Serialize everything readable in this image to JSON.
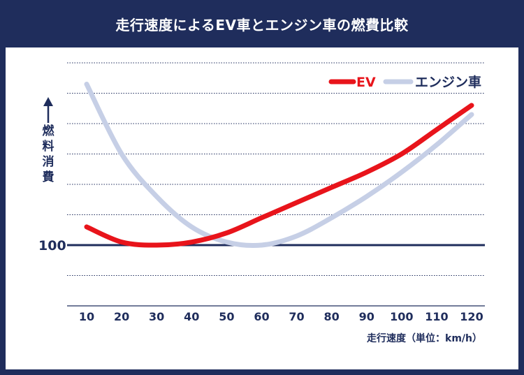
{
  "title": "走行速度によるEV車とエンジン車の燃費比較",
  "chart_data": {
    "type": "line",
    "title": "走行速度によるEV車とエンジン車の燃費比較",
    "xlabel": "走行速度（単位：km/h）",
    "ylabel": "燃料消費",
    "x": [
      10,
      20,
      30,
      40,
      50,
      60,
      70,
      80,
      90,
      100,
      110,
      120
    ],
    "xlim": [
      10,
      120
    ],
    "ylim": [
      80,
      220
    ],
    "reference_line": {
      "value": 100,
      "label": "100"
    },
    "grid": "horizontal dotted",
    "legend_position": "top-right",
    "series": [
      {
        "name": "EV",
        "color": "#e8141b",
        "values": [
          106,
          101,
          100,
          101,
          104,
          109,
          114,
          119,
          124,
          130,
          138,
          146
        ]
      },
      {
        "name": "エンジン車",
        "color": "#c6cfe6",
        "values": [
          153,
          130,
          116,
          106,
          101,
          100,
          103,
          109,
          116,
          124,
          133,
          143
        ]
      }
    ]
  }
}
